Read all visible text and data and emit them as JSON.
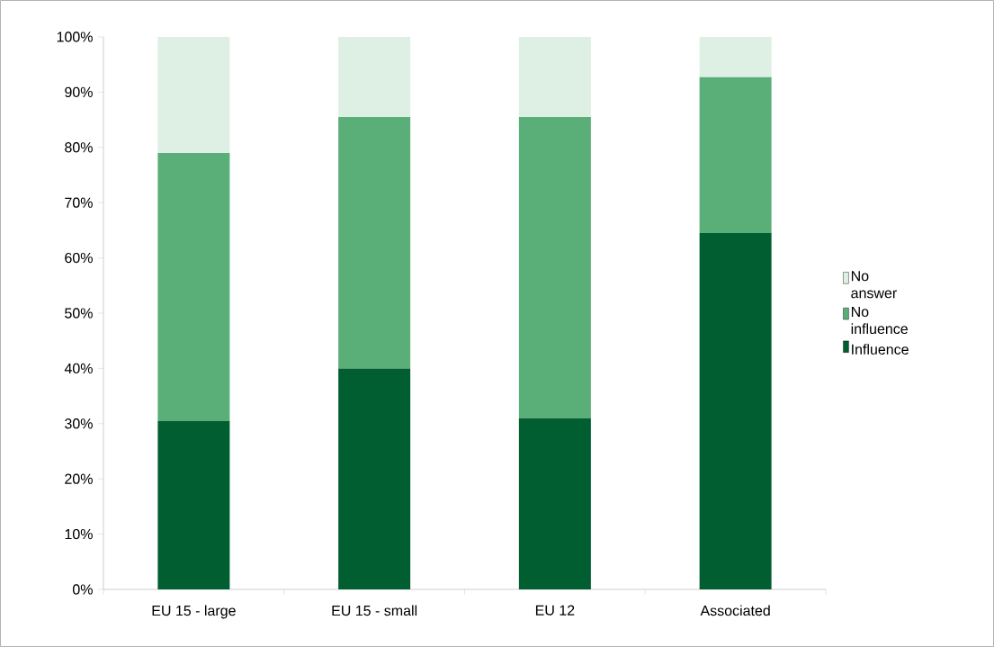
{
  "chart_data": {
    "type": "bar",
    "stacked": true,
    "categories": [
      "EU 15 - large",
      "EU 15 - small",
      "EU 12",
      "Associated"
    ],
    "series": [
      {
        "name": "Influence",
        "color": "#005e30",
        "values": [
          30.5,
          40,
          31,
          64.5
        ]
      },
      {
        "name": "No influence",
        "color": "#5aae78",
        "values": [
          48.5,
          45.5,
          54.5,
          28.2
        ]
      },
      {
        "name": "No answer",
        "color": "#ddf0e3",
        "values": [
          21,
          14.5,
          14.5,
          7.3
        ]
      }
    ],
    "ylim": [
      0,
      100
    ],
    "yticks": [
      {
        "value": 0,
        "label": "0%"
      },
      {
        "value": 10,
        "label": "10%"
      },
      {
        "value": 20,
        "label": "20%"
      },
      {
        "value": 30,
        "label": "30%"
      },
      {
        "value": 40,
        "label": "40%"
      },
      {
        "value": 50,
        "label": "50%"
      },
      {
        "value": 60,
        "label": "60%"
      },
      {
        "value": 70,
        "label": "70%"
      },
      {
        "value": 80,
        "label": "80%"
      },
      {
        "value": 90,
        "label": "90%"
      },
      {
        "value": 100,
        "label": "100%"
      }
    ],
    "grid": false,
    "legend": "right"
  }
}
